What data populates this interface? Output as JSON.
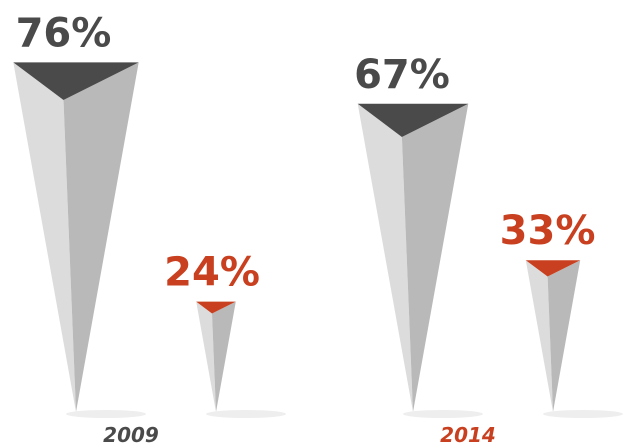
{
  "chart_data": {
    "type": "bar",
    "categories": [
      "2009",
      "2014"
    ],
    "series": [
      {
        "color": "#4a4a4a",
        "values": [
          76,
          67
        ],
        "value_labels": [
          "76%",
          "67%"
        ]
      },
      {
        "color": "#c8401f",
        "values": [
          24,
          33
        ],
        "value_labels": [
          "24%",
          "33%"
        ]
      }
    ]
  }
}
